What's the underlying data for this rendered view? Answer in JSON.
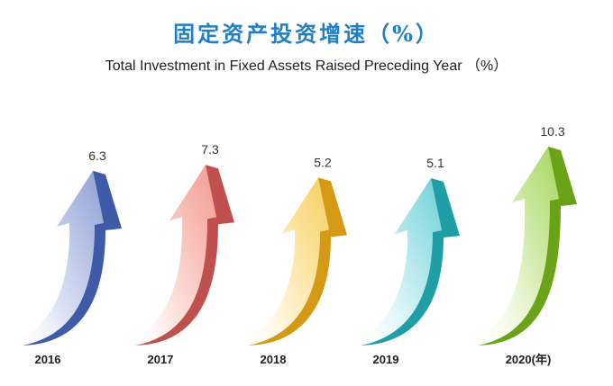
{
  "chart_data": {
    "type": "bar",
    "title": "固定资产投资增速（%）",
    "subtitle": "Total Investment in Fixed Assets Raised Preceding Year （%）",
    "categories": [
      "2016",
      "2017",
      "2018",
      "2019",
      "2020"
    ],
    "category_suffix": "(年)",
    "values": [
      6.3,
      7.3,
      5.2,
      5.1,
      10.3
    ],
    "value_labels": [
      "6.3",
      "7.3",
      "5.2",
      "5.1",
      "10.3"
    ],
    "ylim": [
      0,
      10.3
    ],
    "colors": [
      {
        "light": "#dfe4f5",
        "mid": "#8f9fd6",
        "dark": "#3f5aa6"
      },
      {
        "light": "#fde4e0",
        "mid": "#f29a8f",
        "dark": "#c0504d"
      },
      {
        "light": "#fff3d3",
        "mid": "#f7cf5e",
        "dark": "#d49a16"
      },
      {
        "light": "#dff7f8",
        "mid": "#6fd0d8",
        "dark": "#1f9ea6"
      },
      {
        "light": "#eef8dc",
        "mid": "#a6d65e",
        "dark": "#6aa218"
      }
    ],
    "grid": false,
    "legend": "none"
  }
}
